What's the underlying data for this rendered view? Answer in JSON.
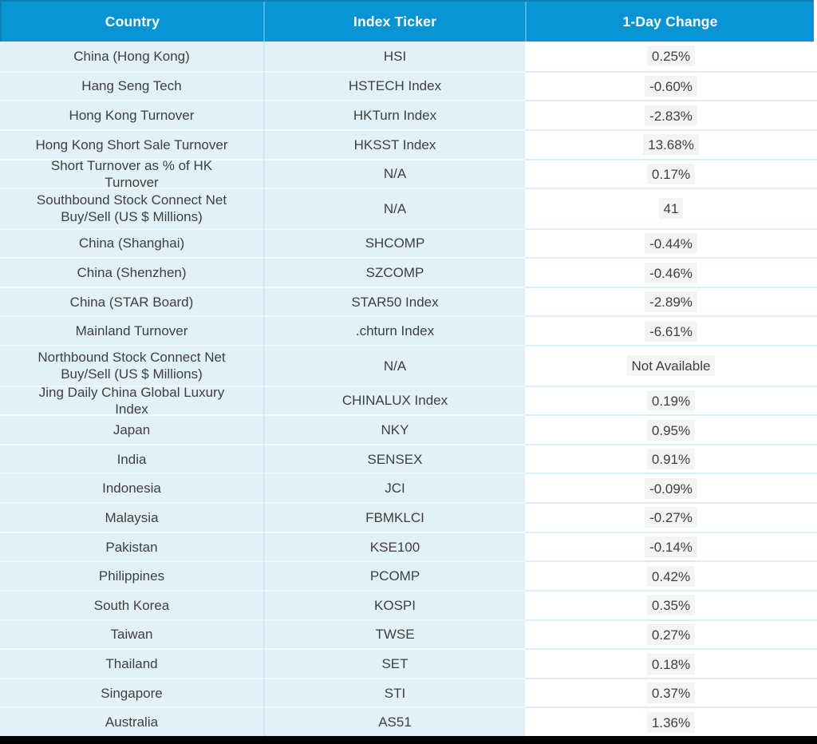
{
  "colors": {
    "header_bg": "#0994D4",
    "header_text": "#FFFFFF",
    "row_bg": "#E2F1F8",
    "cell_text": "#3F3F3F",
    "value_bg": "#F4F4F4",
    "bottom_bar": "#010101"
  },
  "chart_data": {
    "type": "table",
    "columns": [
      "Country",
      "Index Ticker",
      "1-Day Change"
    ],
    "rows": [
      {
        "country": "China (Hong Kong)",
        "ticker": "HSI",
        "change": "0.25%",
        "tall": false
      },
      {
        "country": "Hang Seng Tech",
        "ticker": "HSTECH Index",
        "change": "-0.60%",
        "tall": false
      },
      {
        "country": "Hong Kong Turnover",
        "ticker": "HKTurn Index",
        "change": "-2.83%",
        "tall": false
      },
      {
        "country": "Hong Kong Short Sale Turnover",
        "ticker": "HKSST Index",
        "change": "13.68%",
        "tall": false
      },
      {
        "country": "Short Turnover as % of HK Turnover",
        "ticker": "N/A",
        "change": "0.17%",
        "tall": false
      },
      {
        "country": "Southbound Stock Connect Net Buy/Sell (US $ Millions)",
        "ticker": "N/A",
        "change": "41",
        "tall": true
      },
      {
        "country": "China (Shanghai)",
        "ticker": "SHCOMP",
        "change": "-0.44%",
        "tall": false
      },
      {
        "country": "China (Shenzhen)",
        "ticker": "SZCOMP",
        "change": "-0.46%",
        "tall": false
      },
      {
        "country": "China (STAR Board)",
        "ticker": "STAR50 Index",
        "change": "-2.89%",
        "tall": false
      },
      {
        "country": "Mainland Turnover",
        "ticker": ".chturn Index",
        "change": "-6.61%",
        "tall": false
      },
      {
        "country": "Northbound Stock Connect Net Buy/Sell (US $ Millions)",
        "ticker": "N/A",
        "change": "Not Available",
        "tall": true
      },
      {
        "country": "Jing Daily China Global Luxury Index",
        "ticker": "CHINALUX Index",
        "change": "0.19%",
        "tall": false
      },
      {
        "country": "Japan",
        "ticker": "NKY",
        "change": "0.95%",
        "tall": false
      },
      {
        "country": "India",
        "ticker": "SENSEX",
        "change": "0.91%",
        "tall": false
      },
      {
        "country": "Indonesia",
        "ticker": "JCI",
        "change": "-0.09%",
        "tall": false
      },
      {
        "country": "Malaysia",
        "ticker": "FBMKLCI",
        "change": "-0.27%",
        "tall": false
      },
      {
        "country": "Pakistan",
        "ticker": "KSE100",
        "change": "-0.14%",
        "tall": false
      },
      {
        "country": "Philippines",
        "ticker": "PCOMP",
        "change": "0.42%",
        "tall": false
      },
      {
        "country": "South Korea",
        "ticker": "KOSPI",
        "change": "0.35%",
        "tall": false
      },
      {
        "country": "Taiwan",
        "ticker": "TWSE",
        "change": "0.27%",
        "tall": false
      },
      {
        "country": "Thailand",
        "ticker": "SET",
        "change": "0.18%",
        "tall": false
      },
      {
        "country": "Singapore",
        "ticker": "STI",
        "change": "0.37%",
        "tall": false
      },
      {
        "country": "Australia",
        "ticker": "AS51",
        "change": "1.36%",
        "tall": false
      }
    ]
  }
}
